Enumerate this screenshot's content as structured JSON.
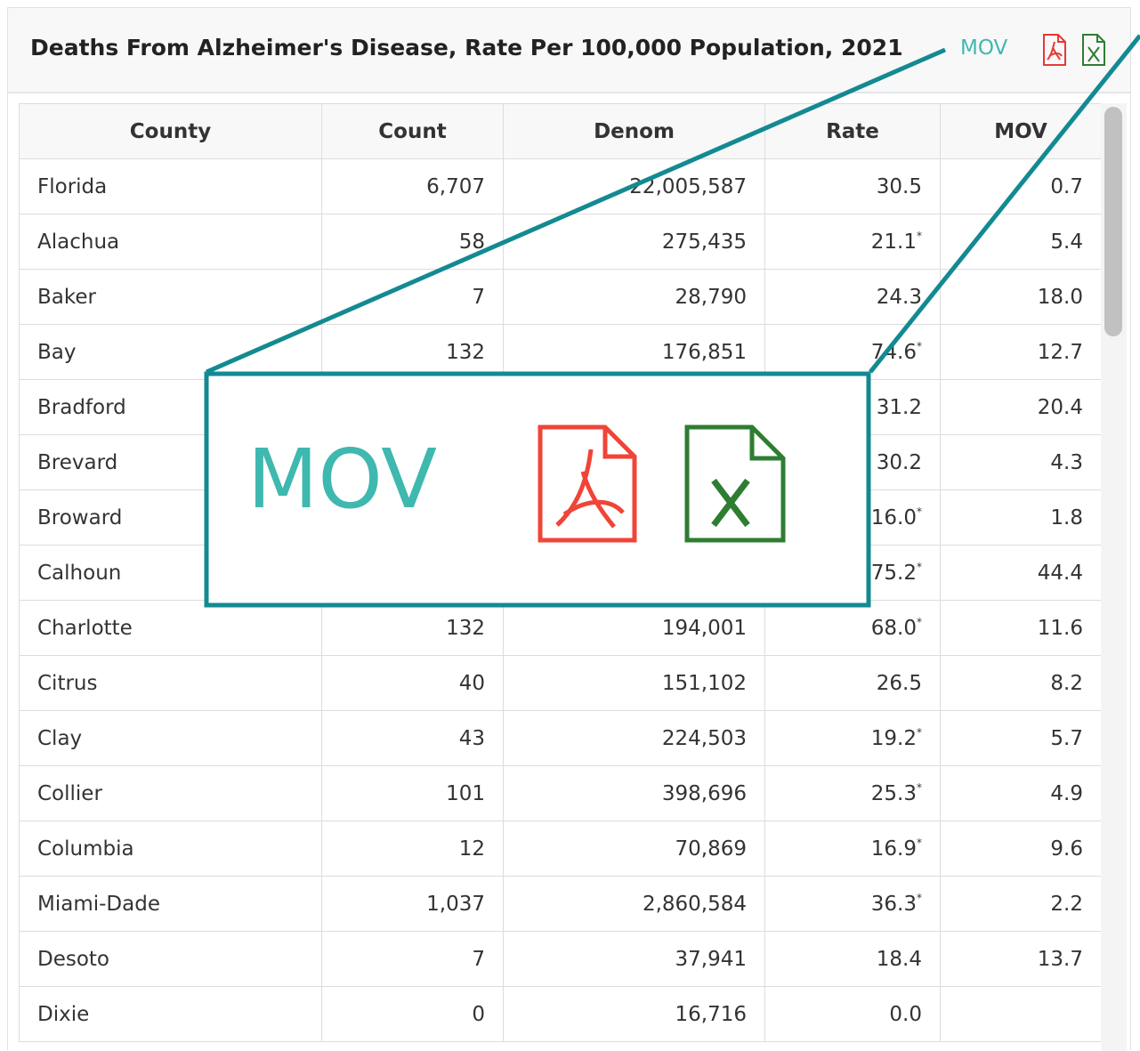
{
  "header": {
    "title": "Deaths From Alzheimer's Disease, Rate Per 100,000 Population, 2021",
    "mov_button": "MOV"
  },
  "callout": {
    "mov": "MOV"
  },
  "table": {
    "columns": [
      "County",
      "Count",
      "Denom",
      "Rate",
      "MOV"
    ],
    "rows": [
      {
        "county": "Florida",
        "count": "6,707",
        "denom": "22,005,587",
        "rate": "30.5",
        "mov": "0.7"
      },
      {
        "county": "Alachua",
        "count": "58",
        "denom": "275,435",
        "rate": "21.1",
        "rate_note": "*",
        "mov": "5.4"
      },
      {
        "county": "Baker",
        "count": "7",
        "denom": "28,790",
        "rate": "24.3",
        "mov": "18.0"
      },
      {
        "county": "Bay",
        "count": "132",
        "denom": "176,851",
        "rate": "74.6",
        "rate_note": "*",
        "mov": "12.7"
      },
      {
        "county": "Bradford",
        "rate": "31.2",
        "mov": "20.4"
      },
      {
        "county": "Brevard",
        "rate": "30.2",
        "mov": "4.3"
      },
      {
        "county": "Broward",
        "rate": "16.0",
        "rate_note": "*",
        "mov": "1.8"
      },
      {
        "county": "Calhoun",
        "rate": "75.2",
        "rate_note": "*",
        "mov": "44.4"
      },
      {
        "county": "Charlotte",
        "count": "132",
        "denom": "194,001",
        "rate": "68.0",
        "rate_note": "*",
        "mov": "11.6"
      },
      {
        "county": "Citrus",
        "count": "40",
        "denom": "151,102",
        "rate": "26.5",
        "mov": "8.2"
      },
      {
        "county": "Clay",
        "count": "43",
        "denom": "224,503",
        "rate": "19.2",
        "rate_note": "*",
        "mov": "5.7"
      },
      {
        "county": "Collier",
        "count": "101",
        "denom": "398,696",
        "rate": "25.3",
        "rate_note": "*",
        "mov": "4.9"
      },
      {
        "county": "Columbia",
        "count": "12",
        "denom": "70,869",
        "rate": "16.9",
        "rate_note": "*",
        "mov": "9.6"
      },
      {
        "county": "Miami-Dade",
        "count": "1,037",
        "denom": "2,860,584",
        "rate": "36.3",
        "rate_note": "*",
        "mov": "2.2"
      },
      {
        "county": "Desoto",
        "count": "7",
        "denom": "37,941",
        "rate": "18.4",
        "mov": "13.7"
      },
      {
        "county": "Dixie",
        "count": "0",
        "denom": "16,716",
        "rate": "0.0"
      }
    ]
  }
}
